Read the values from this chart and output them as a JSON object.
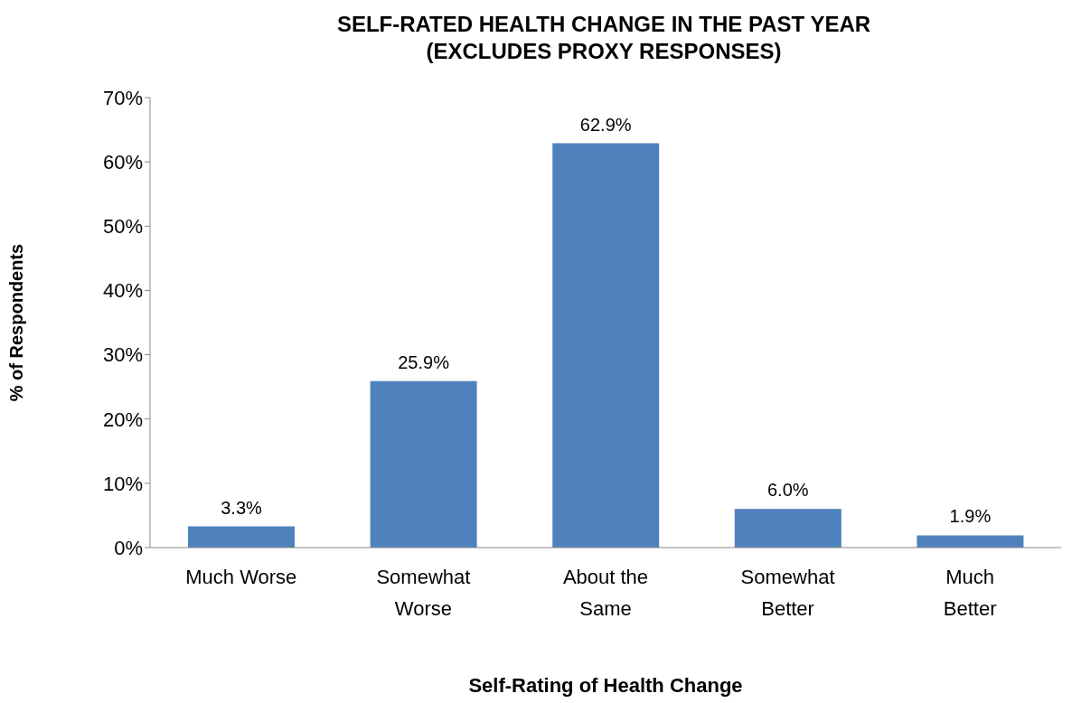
{
  "chart_data": {
    "type": "bar",
    "title": "SELF-RATED HEALTH CHANGE IN THE PAST YEAR\n(EXCLUDES PROXY RESPONSES)",
    "xlabel": "Self-Rating of Health Change",
    "ylabel": "% of Respondents",
    "categories": [
      "Much Worse",
      "Somewhat Worse",
      "About the Same",
      "Somewhat Better",
      "Much Better"
    ],
    "values": [
      3.3,
      25.9,
      62.9,
      6.0,
      1.9
    ],
    "value_labels": [
      "3.3%",
      "25.9%",
      "62.9%",
      "6.0%",
      "1.9%"
    ],
    "color": "#4f81bd",
    "ylim": [
      0,
      70
    ],
    "yticks": [
      {
        "value": 0,
        "label": "0%"
      },
      {
        "value": 10,
        "label": "10%"
      },
      {
        "value": 20,
        "label": "20%"
      },
      {
        "value": 30,
        "label": "30%"
      },
      {
        "value": 40,
        "label": "40%"
      },
      {
        "value": 50,
        "label": "50%"
      },
      {
        "value": 60,
        "label": "60%"
      },
      {
        "value": 70,
        "label": "70%"
      }
    ],
    "grid": false,
    "legend": false
  }
}
